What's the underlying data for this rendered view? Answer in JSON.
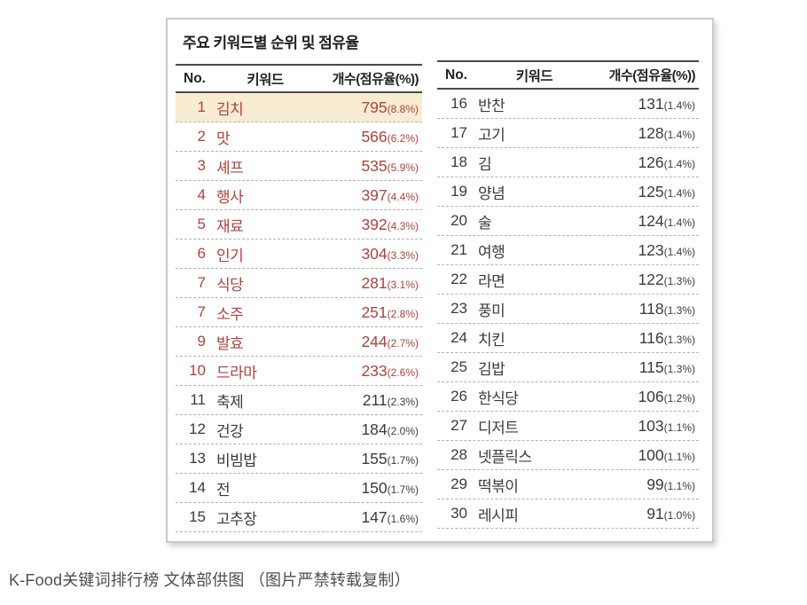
{
  "panel": {
    "title": "주요 키워드별 순위 및 점유율"
  },
  "columns": {
    "no": "No.",
    "keyword": "키워드",
    "count": "개수(점유율(%))"
  },
  "left_table": {
    "rows": [
      {
        "rank": "1",
        "keyword": "김치",
        "count": "795",
        "share": "(8.8%)",
        "red": true,
        "highlight": true
      },
      {
        "rank": "2",
        "keyword": "맛",
        "count": "566",
        "share": "(6.2%)",
        "red": true
      },
      {
        "rank": "3",
        "keyword": "셰프",
        "count": "535",
        "share": "(5.9%)",
        "red": true
      },
      {
        "rank": "4",
        "keyword": "행사",
        "count": "397",
        "share": "(4.4%)",
        "red": true
      },
      {
        "rank": "5",
        "keyword": "재료",
        "count": "392",
        "share": "(4.3%)",
        "red": true
      },
      {
        "rank": "6",
        "keyword": "인기",
        "count": "304",
        "share": "(3.3%)",
        "red": true
      },
      {
        "rank": "7",
        "keyword": "식당",
        "count": "281",
        "share": "(3.1%)",
        "red": true
      },
      {
        "rank": "7",
        "keyword": "소주",
        "count": "251",
        "share": "(2.8%)",
        "red": true
      },
      {
        "rank": "9",
        "keyword": "발효",
        "count": "244",
        "share": "(2.7%)",
        "red": true
      },
      {
        "rank": "10",
        "keyword": "드라마",
        "count": "233",
        "share": "(2.6%)",
        "red": true
      },
      {
        "rank": "11",
        "keyword": "축제",
        "count": "211",
        "share": "(2.3%)"
      },
      {
        "rank": "12",
        "keyword": "건강",
        "count": "184",
        "share": "(2.0%)"
      },
      {
        "rank": "13",
        "keyword": "비빔밥",
        "count": "155",
        "share": "(1.7%)"
      },
      {
        "rank": "14",
        "keyword": "전",
        "count": "150",
        "share": "(1.7%)"
      },
      {
        "rank": "15",
        "keyword": "고추장",
        "count": "147",
        "share": "(1.6%)"
      }
    ]
  },
  "right_table": {
    "rows": [
      {
        "rank": "16",
        "keyword": "반찬",
        "count": "131",
        "share": "(1.4%)"
      },
      {
        "rank": "17",
        "keyword": "고기",
        "count": "128",
        "share": "(1.4%)"
      },
      {
        "rank": "18",
        "keyword": "김",
        "count": "126",
        "share": "(1.4%)"
      },
      {
        "rank": "19",
        "keyword": "양념",
        "count": "125",
        "share": "(1.4%)"
      },
      {
        "rank": "20",
        "keyword": "술",
        "count": "124",
        "share": "(1.4%)"
      },
      {
        "rank": "21",
        "keyword": "여행",
        "count": "123",
        "share": "(1.4%)"
      },
      {
        "rank": "22",
        "keyword": "라면",
        "count": "122",
        "share": "(1.3%)"
      },
      {
        "rank": "23",
        "keyword": "풍미",
        "count": "118",
        "share": "(1.3%)"
      },
      {
        "rank": "24",
        "keyword": "치킨",
        "count": "116",
        "share": "(1.3%)"
      },
      {
        "rank": "25",
        "keyword": "김밥",
        "count": "115",
        "share": "(1.3%)"
      },
      {
        "rank": "26",
        "keyword": "한식당",
        "count": "106",
        "share": "(1.2%)"
      },
      {
        "rank": "27",
        "keyword": "디저트",
        "count": "103",
        "share": "(1.1%)"
      },
      {
        "rank": "28",
        "keyword": "넷플릭스",
        "count": "100",
        "share": "(1.1%)"
      },
      {
        "rank": "29",
        "keyword": "떡볶이",
        "count": "99",
        "share": "(1.1%)"
      },
      {
        "rank": "30",
        "keyword": "레시피",
        "count": "91",
        "share": "(1.0%)"
      }
    ]
  },
  "caption": "K-Food关键词排行榜 文体部供图 （图片严禁转载复制）",
  "colors": {
    "accent_red": "#b0423c",
    "highlight_bg": "#f8ecd2",
    "line_dark": "#4a4a4a",
    "line_dashed": "#b4b4b4",
    "text_dark": "#3b3b3b",
    "panel_border": "#c9c9c9"
  },
  "chart_data": {
    "type": "table",
    "title": "주요 키워드별 순위 및 점유율",
    "columns": [
      "No.",
      "키워드",
      "개수(점유율(%))"
    ],
    "rows": [
      [
        1,
        "김치",
        795,
        8.8
      ],
      [
        2,
        "맛",
        566,
        6.2
      ],
      [
        3,
        "셰프",
        535,
        5.9
      ],
      [
        4,
        "행사",
        397,
        4.4
      ],
      [
        5,
        "재료",
        392,
        4.3
      ],
      [
        6,
        "인기",
        304,
        3.3
      ],
      [
        7,
        "식당",
        281,
        3.1
      ],
      [
        7,
        "소주",
        251,
        2.8
      ],
      [
        9,
        "발효",
        244,
        2.7
      ],
      [
        10,
        "드라마",
        233,
        2.6
      ],
      [
        11,
        "축제",
        211,
        2.3
      ],
      [
        12,
        "건강",
        184,
        2.0
      ],
      [
        13,
        "비빔밥",
        155,
        1.7
      ],
      [
        14,
        "전",
        150,
        1.7
      ],
      [
        15,
        "고추장",
        147,
        1.6
      ],
      [
        16,
        "반찬",
        131,
        1.4
      ],
      [
        17,
        "고기",
        128,
        1.4
      ],
      [
        18,
        "김",
        126,
        1.4
      ],
      [
        19,
        "양념",
        125,
        1.4
      ],
      [
        20,
        "술",
        124,
        1.4
      ],
      [
        21,
        "여행",
        123,
        1.4
      ],
      [
        22,
        "라면",
        122,
        1.3
      ],
      [
        23,
        "풍미",
        118,
        1.3
      ],
      [
        24,
        "치킨",
        116,
        1.3
      ],
      [
        25,
        "김밥",
        115,
        1.3
      ],
      [
        26,
        "한식당",
        106,
        1.2
      ],
      [
        27,
        "디저트",
        103,
        1.1
      ],
      [
        28,
        "넷플릭스",
        100,
        1.1
      ],
      [
        29,
        "떡볶이",
        99,
        1.1
      ],
      [
        30,
        "레시피",
        91,
        1.0
      ]
    ],
    "notes": "Highlighted row: rank 1 (김치). Rows 1-10 rendered in red; rows 11-30 in dark gray."
  }
}
